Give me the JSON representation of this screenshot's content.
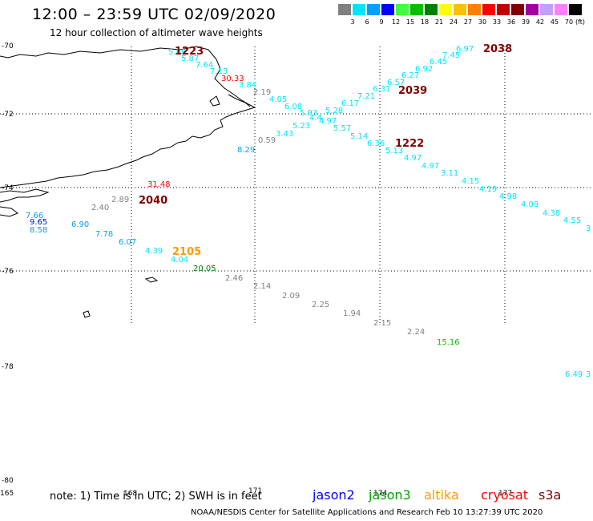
{
  "header": {
    "title": "12:00 – 23:59 UTC 02/09/2020",
    "subtitle": "12 hour collection of altimeter wave heights"
  },
  "legend": {
    "unit": "(ft)",
    "bins": [
      {
        "label": "3",
        "color": "#808080"
      },
      {
        "label": "6",
        "color": "#00e5ff"
      },
      {
        "label": "9",
        "color": "#00a0ff"
      },
      {
        "label": "12",
        "color": "#0000ff"
      },
      {
        "label": "15",
        "color": "#40ff40"
      },
      {
        "label": "18",
        "color": "#00c000"
      },
      {
        "label": "21",
        "color": "#008000"
      },
      {
        "label": "24",
        "color": "#ffff00"
      },
      {
        "label": "27",
        "color": "#ffc000"
      },
      {
        "label": "30",
        "color": "#ff8000"
      },
      {
        "label": "33",
        "color": "#ff0000"
      },
      {
        "label": "36",
        "color": "#c00000"
      },
      {
        "label": "39",
        "color": "#800000"
      },
      {
        "label": "42",
        "color": "#a000a0"
      },
      {
        "label": "45",
        "color": "#c0a0ff"
      },
      {
        "label": "70",
        "color": "#ff80ff"
      },
      {
        "label": "",
        "color": "#000000"
      }
    ]
  },
  "map": {
    "lat_labels": [
      "-70",
      "-72",
      "-74",
      "-76",
      "-78",
      "-80"
    ],
    "lon_labels": [
      "165",
      "168",
      "171",
      "174",
      "177"
    ],
    "pass_labels": [
      {
        "text": "1223",
        "color": "#800000"
      },
      {
        "text": "2038",
        "color": "#800000"
      },
      {
        "text": "2039",
        "color": "#800000"
      },
      {
        "text": "1222",
        "color": "#800000"
      },
      {
        "text": "2040",
        "color": "#800000"
      },
      {
        "text": "2105",
        "color": "#ff9900"
      }
    ],
    "observations": [
      {
        "v": "5.88",
        "c": "#00e5ff"
      },
      {
        "v": "5.87",
        "c": "#00e5ff"
      },
      {
        "v": "7.64",
        "c": "#00e5ff"
      },
      {
        "v": "7.13",
        "c": "#00e5ff"
      },
      {
        "v": "30.33",
        "c": "#ff0000"
      },
      {
        "v": "3.84",
        "c": "#00e5ff"
      },
      {
        "v": "2.19",
        "c": "#808080"
      },
      {
        "v": "4.05",
        "c": "#00e5ff"
      },
      {
        "v": "6.08",
        "c": "#00e5ff"
      },
      {
        "v": "5.93",
        "c": "#00e5ff"
      },
      {
        "v": "4.4",
        "c": "#00e5ff"
      },
      {
        "v": "4.97",
        "c": "#00e5ff"
      },
      {
        "v": "5.28",
        "c": "#00e5ff"
      },
      {
        "v": "6.17",
        "c": "#00e5ff"
      },
      {
        "v": "7.21",
        "c": "#00e5ff"
      },
      {
        "v": "6.31",
        "c": "#00e5ff"
      },
      {
        "v": "6.57",
        "c": "#00e5ff"
      },
      {
        "v": "6.27",
        "c": "#00e5ff"
      },
      {
        "v": "6.92",
        "c": "#00e5ff"
      },
      {
        "v": "6.45",
        "c": "#00e5ff"
      },
      {
        "v": "7.45",
        "c": "#00e5ff"
      },
      {
        "v": "6.97",
        "c": "#00e5ff"
      },
      {
        "v": "5.23",
        "c": "#00e5ff"
      },
      {
        "v": "3.43",
        "c": "#00e5ff"
      },
      {
        "v": "0.59",
        "c": "#808080"
      },
      {
        "v": "8.29",
        "c": "#00a0ff"
      },
      {
        "v": "5.57",
        "c": "#00e5ff"
      },
      {
        "v": "5.14",
        "c": "#00e5ff"
      },
      {
        "v": "6.36",
        "c": "#00e5ff"
      },
      {
        "v": "5.13",
        "c": "#00e5ff"
      },
      {
        "v": "4.97",
        "c": "#00e5ff"
      },
      {
        "v": "4.97",
        "c": "#00e5ff"
      },
      {
        "v": "3.11",
        "c": "#00e5ff"
      },
      {
        "v": "4.15",
        "c": "#00e5ff"
      },
      {
        "v": "4.19",
        "c": "#00e5ff"
      },
      {
        "v": "4.98",
        "c": "#00e5ff"
      },
      {
        "v": "4.09",
        "c": "#00e5ff"
      },
      {
        "v": "4.38",
        "c": "#00e5ff"
      },
      {
        "v": "4.55",
        "c": "#00e5ff"
      },
      {
        "v": "3",
        "c": "#00e5ff"
      },
      {
        "v": "31.48",
        "c": "#ff0000"
      },
      {
        "v": "2.89",
        "c": "#808080"
      },
      {
        "v": "2.40",
        "c": "#808080"
      },
      {
        "v": "7.66",
        "c": "#00a0ff"
      },
      {
        "v": "9.65",
        "c": "#0000ff"
      },
      {
        "v": "6.90",
        "c": "#00a0ff"
      },
      {
        "v": "8.58",
        "c": "#00a0ff"
      },
      {
        "v": "7.78",
        "c": "#00a0ff"
      },
      {
        "v": "6.07",
        "c": "#00a0ff"
      },
      {
        "v": "4.39",
        "c": "#00e5ff"
      },
      {
        "v": "4.04",
        "c": "#00e5ff"
      },
      {
        "v": "20.05",
        "c": "#008000"
      },
      {
        "v": "2.46",
        "c": "#808080"
      },
      {
        "v": "2.14",
        "c": "#808080"
      },
      {
        "v": "2.09",
        "c": "#808080"
      },
      {
        "v": "2.25",
        "c": "#808080"
      },
      {
        "v": "1.94",
        "c": "#808080"
      },
      {
        "v": "2.15",
        "c": "#808080"
      },
      {
        "v": "2.24",
        "c": "#808080"
      },
      {
        "v": "15.16",
        "c": "#00c000"
      },
      {
        "v": "6.49",
        "c": "#00e5ff"
      },
      {
        "v": "3",
        "c": "#00e5ff"
      }
    ]
  },
  "footer": {
    "note": "note:  1) Time is in UTC;  2) SWH is in feet",
    "satellites": [
      {
        "name": "jason2",
        "color": "#0000ff"
      },
      {
        "name": "jason3",
        "color": "#00a000"
      },
      {
        "name": "altika",
        "color": "#ff9900"
      },
      {
        "name": "cryosat",
        "color": "#ff0000"
      },
      {
        "name": "s3a",
        "color": "#800000"
      }
    ],
    "credit": "NOAA/NESDIS Center for Satellite Applications and Research    Feb 10 13:27:39 UTC 2020"
  }
}
